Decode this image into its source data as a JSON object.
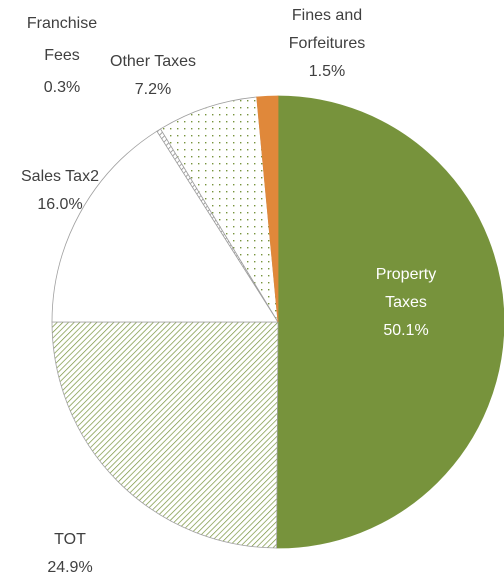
{
  "chart_data": {
    "type": "pie",
    "categories": [
      "Property Taxes",
      "TOT",
      "Sales Tax2",
      "Franchise Fees",
      "Other Taxes",
      "Fines and Forfeitures"
    ],
    "values": [
      50.1,
      24.9,
      16.0,
      0.3,
      7.2,
      1.5
    ],
    "value_labels": [
      "50.1%",
      "24.9%",
      "16.0%",
      "0.3%",
      "7.2%",
      "1.5%"
    ],
    "colors": [
      "#77933c",
      "#77933c",
      "#ffffff",
      "#7f7f7f",
      "#77933c",
      "#e0883a"
    ],
    "patterns": [
      "solid",
      "diagonal",
      "solid",
      "diagonal",
      "dots",
      "solid"
    ]
  }
}
